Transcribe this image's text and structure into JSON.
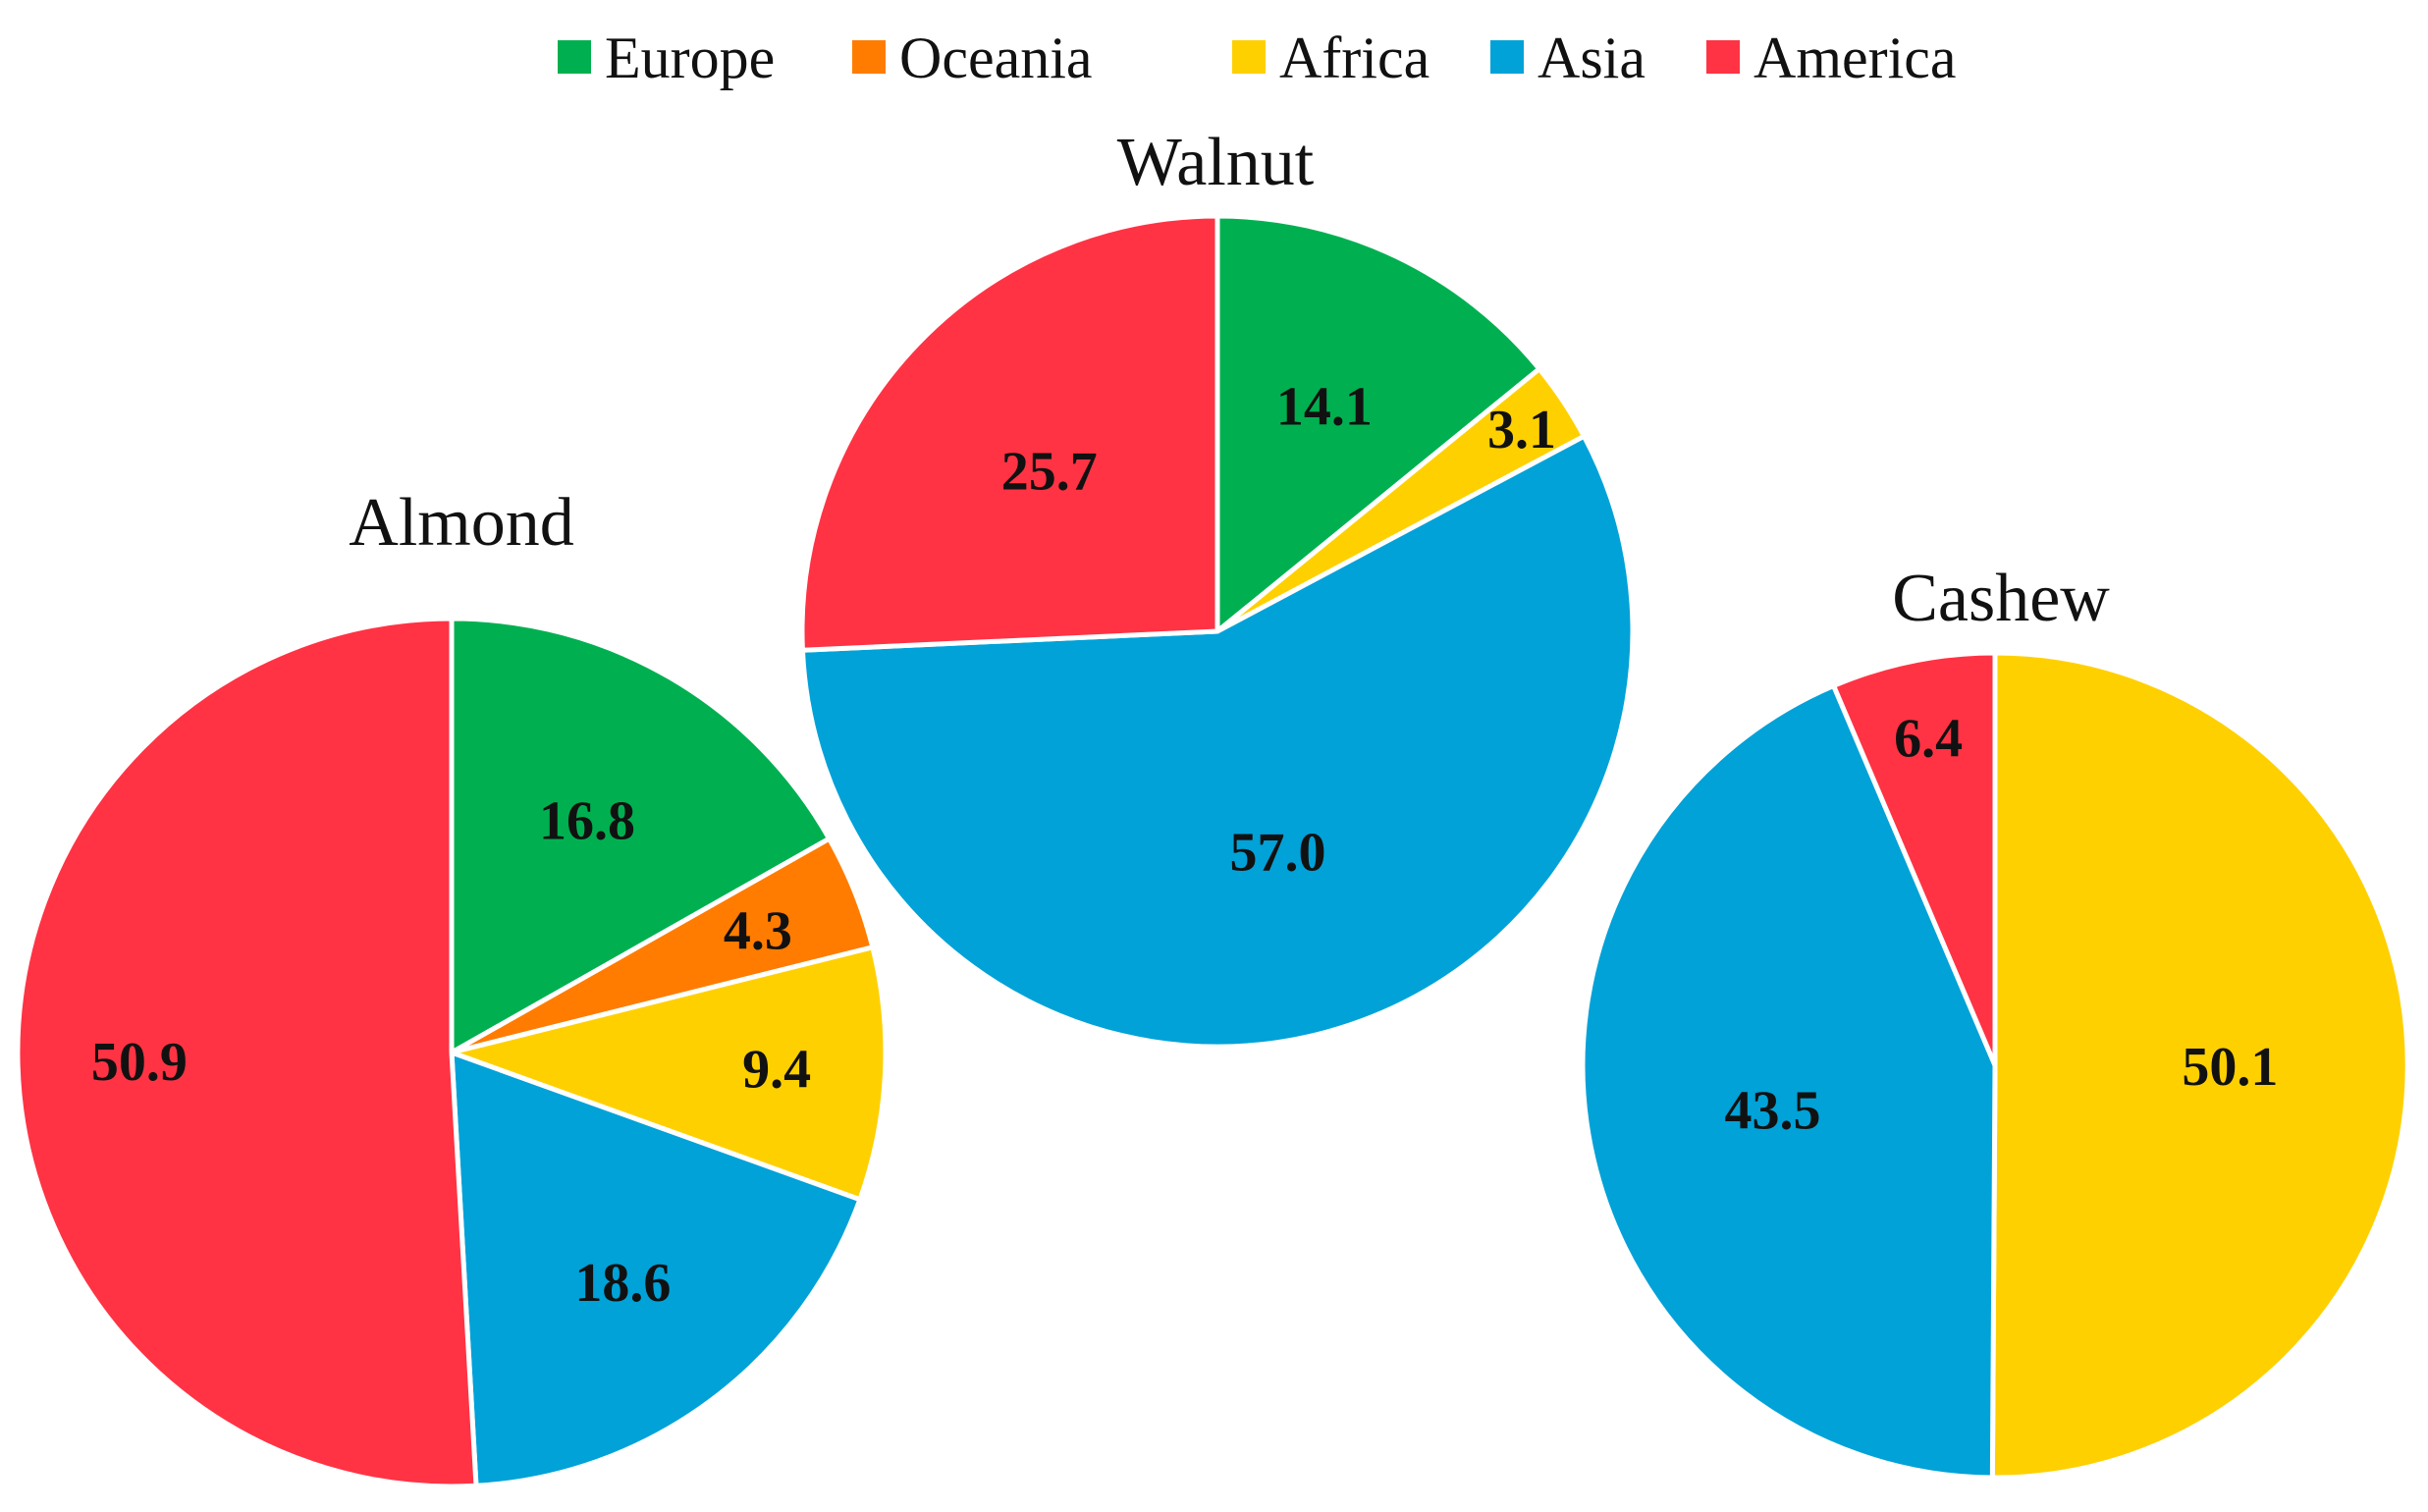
{
  "legend": {
    "position": "top-center",
    "items": [
      {
        "name": "Europe",
        "color": "#00B050"
      },
      {
        "name": "Oceania",
        "color": "#FF7C00"
      },
      {
        "name": "Africa",
        "color": "#FFD000"
      },
      {
        "name": "Asia",
        "color": "#00A2D8"
      },
      {
        "name": "America",
        "color": "#FF3344"
      }
    ]
  },
  "chart_data": [
    {
      "type": "pie",
      "title": "Almond",
      "slices": [
        {
          "label": "Europe",
          "value": 16.8,
          "display": "16.8"
        },
        {
          "label": "Oceania",
          "value": 4.3,
          "display": "4.3"
        },
        {
          "label": "Africa",
          "value": 9.4,
          "display": "9.4"
        },
        {
          "label": "Asia",
          "value": 18.6,
          "display": "18.6"
        },
        {
          "label": "America",
          "value": 50.9,
          "display": "50.9"
        }
      ]
    },
    {
      "type": "pie",
      "title": "Walnut",
      "slices": [
        {
          "label": "Europe",
          "value": 14.1,
          "display": "14.1"
        },
        {
          "label": "Africa",
          "value": 3.1,
          "display": "3.1"
        },
        {
          "label": "Asia",
          "value": 57.0,
          "display": "57.0"
        },
        {
          "label": "America",
          "value": 25.7,
          "display": "25.7"
        }
      ]
    },
    {
      "type": "pie",
      "title": "Cashew",
      "slices": [
        {
          "label": "Africa",
          "value": 50.1,
          "display": "50.1"
        },
        {
          "label": "Asia",
          "value": 43.5,
          "display": "43.5"
        },
        {
          "label": "America",
          "value": 6.4,
          "display": "6.4"
        }
      ]
    }
  ]
}
